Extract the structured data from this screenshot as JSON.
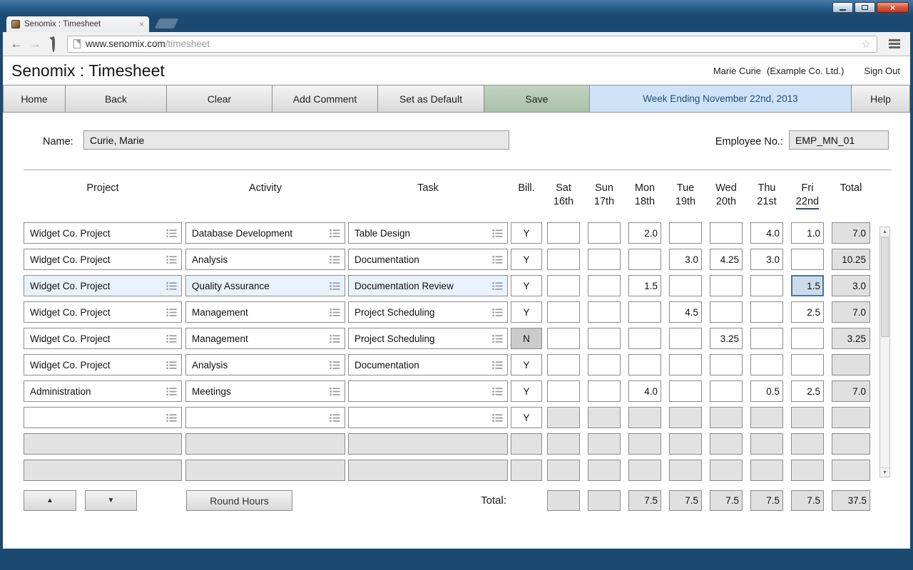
{
  "colors": {
    "frame": "#1b4a71",
    "toolbar-bg": "#f1f1f1",
    "save-top": "#c2d2c2",
    "save-green": "#a9c1a9",
    "week-blue": "#cfe3f8",
    "week-text": "#1d4e7e",
    "highlight": "#e9f3fd",
    "selected-bg": "#ccdbeb",
    "selected-border": "#4e7296",
    "disabled": "#e2e2e2",
    "total-bg": "#e0e0e0",
    "cell-border": "#8c8c8c"
  },
  "browser": {
    "tab_title": "Senomix : Timesheet",
    "url_domain": "www.senomix.com",
    "url_path": "/timesheet"
  },
  "header": {
    "title": "Senomix : Timesheet",
    "user": "Marie Curie",
    "company": "(Example Co. Ltd.)",
    "sign_out": "Sign Out"
  },
  "toolbar": {
    "home": "Home",
    "back": "Back",
    "clear": "Clear",
    "add_comment": "Add Comment",
    "set_as_default": "Set as Default",
    "save": "Save",
    "week_ending": "Week Ending November 22nd, 2013",
    "help": "Help"
  },
  "form": {
    "name_label": "Name:",
    "name_value": "Curie, Marie",
    "employee_label": "Employee No.:",
    "employee_value": "EMP_MN_01"
  },
  "table": {
    "col_headers": {
      "project": "Project",
      "activity": "Activity",
      "task": "Task",
      "bill": "Bill.",
      "total": "Total"
    },
    "day_headers": [
      {
        "day": "Sat",
        "date": "16th"
      },
      {
        "day": "Sun",
        "date": "17th"
      },
      {
        "day": "Mon",
        "date": "18th"
      },
      {
        "day": "Tue",
        "date": "19th"
      },
      {
        "day": "Wed",
        "date": "20th"
      },
      {
        "day": "Thu",
        "date": "21st"
      },
      {
        "day": "Fri",
        "date": "22nd",
        "current": true
      }
    ],
    "rows": [
      {
        "state": "active",
        "project": "Widget Co. Project",
        "activity": "Database Development",
        "task": "Table Design",
        "bill": "Y",
        "days": [
          "",
          "",
          "2.0",
          "",
          "",
          "4.0",
          "1.0"
        ],
        "total": "7.0"
      },
      {
        "state": "active",
        "project": "Widget Co. Project",
        "activity": "Analysis",
        "task": "Documentation",
        "bill": "Y",
        "days": [
          "",
          "",
          "",
          "3.0",
          "4.25",
          "3.0",
          ""
        ],
        "total": "10.25"
      },
      {
        "state": "active",
        "highlighted": true,
        "selected_day": 6,
        "project": "Widget Co. Project",
        "activity": "Quality Assurance",
        "task": "Documentation Review",
        "bill": "Y",
        "days": [
          "",
          "",
          "1.5",
          "",
          "",
          "",
          "1.5"
        ],
        "total": "3.0"
      },
      {
        "state": "active",
        "project": "Widget Co. Project",
        "activity": "Management",
        "task": "Project Scheduling",
        "bill": "Y",
        "days": [
          "",
          "",
          "",
          "4.5",
          "",
          "",
          "2.5"
        ],
        "total": "7.0"
      },
      {
        "state": "active",
        "project": "Widget Co. Project",
        "activity": "Management",
        "task": "Project Scheduling",
        "bill": "N",
        "days": [
          "",
          "",
          "",
          "",
          "3.25",
          "",
          ""
        ],
        "total": "3.25"
      },
      {
        "state": "active",
        "project": "Widget Co. Project",
        "activity": "Analysis",
        "task": "Documentation",
        "bill": "Y",
        "days": [
          "",
          "",
          "",
          "",
          "",
          "",
          ""
        ],
        "total": ""
      },
      {
        "state": "active",
        "project": "Administration",
        "activity": "Meetings",
        "task": "",
        "bill": "Y",
        "days": [
          "",
          "",
          "4.0",
          "",
          "",
          "0.5",
          "2.5"
        ],
        "total": "7.0"
      },
      {
        "state": "new",
        "project": "",
        "activity": "",
        "task": "",
        "bill": "Y",
        "days": [
          "",
          "",
          "",
          "",
          "",
          "",
          ""
        ],
        "total": ""
      },
      {
        "state": "disabled",
        "project": "",
        "activity": "",
        "task": "",
        "bill": "",
        "days": [
          "",
          "",
          "",
          "",
          "",
          "",
          ""
        ],
        "total": ""
      },
      {
        "state": "disabled",
        "project": "",
        "activity": "",
        "task": "",
        "bill": "",
        "days": [
          "",
          "",
          "",
          "",
          "",
          "",
          ""
        ],
        "total": ""
      }
    ],
    "totals": {
      "label": "Total:",
      "days": [
        "",
        "",
        "7.5",
        "7.5",
        "7.5",
        "7.5",
        "7.5"
      ],
      "total": "37.5"
    }
  },
  "footer": {
    "up": "▲",
    "down": "▼",
    "round_hours": "Round Hours"
  }
}
